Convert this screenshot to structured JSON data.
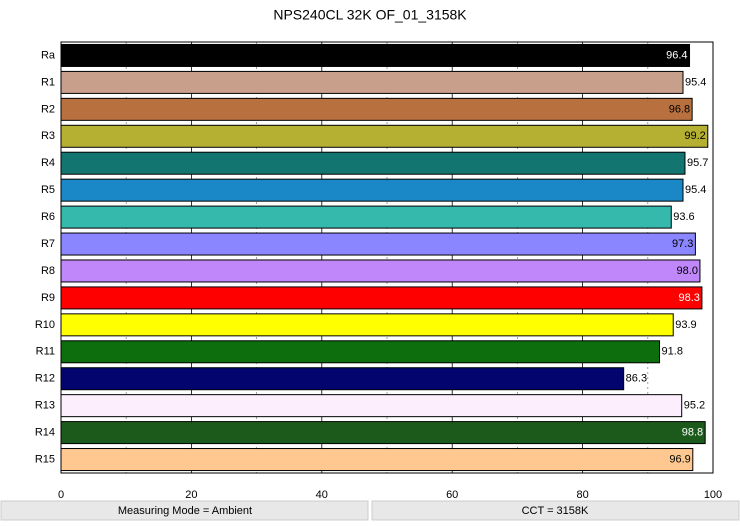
{
  "chart_data": {
    "type": "hbar",
    "title": "NPS240CL 32K OF_01_3158K",
    "categories": [
      "Ra",
      "R1",
      "R2",
      "R3",
      "R4",
      "R5",
      "R6",
      "R7",
      "R8",
      "R9",
      "R10",
      "R11",
      "R12",
      "R13",
      "R14",
      "R15"
    ],
    "values": [
      96.4,
      95.4,
      96.8,
      99.2,
      95.7,
      95.4,
      93.6,
      97.3,
      98,
      98.3,
      93.9,
      91.8,
      86.3,
      95.2,
      98.8,
      96.9
    ],
    "value_labels": [
      "96.4",
      "95.4",
      "96.8",
      "99.2",
      "95.7",
      "95.4",
      "93.6",
      "97.3",
      "98.0",
      "98.3",
      "93.9",
      "91.8",
      "86.3",
      "95.2",
      "98.8",
      "96.9"
    ],
    "colors": [
      "#000000",
      "#c89f8a",
      "#b8703f",
      "#b5b032",
      "#127570",
      "#1a88c7",
      "#36b9ad",
      "#8a86ff",
      "#c087fb",
      "#ff0000",
      "#ffff00",
      "#0d6e0d",
      "#04046f",
      "#fdeefd",
      "#1b5a1b",
      "#ffc890"
    ],
    "xlim": [
      0,
      100
    ],
    "xticks": [
      0,
      20,
      40,
      60,
      80,
      100
    ],
    "minor_grid": [
      10,
      30,
      50,
      70,
      90
    ],
    "grid": true
  },
  "footer": {
    "left": "Measuring Mode = Ambient",
    "right": "CCT = 3158K"
  }
}
